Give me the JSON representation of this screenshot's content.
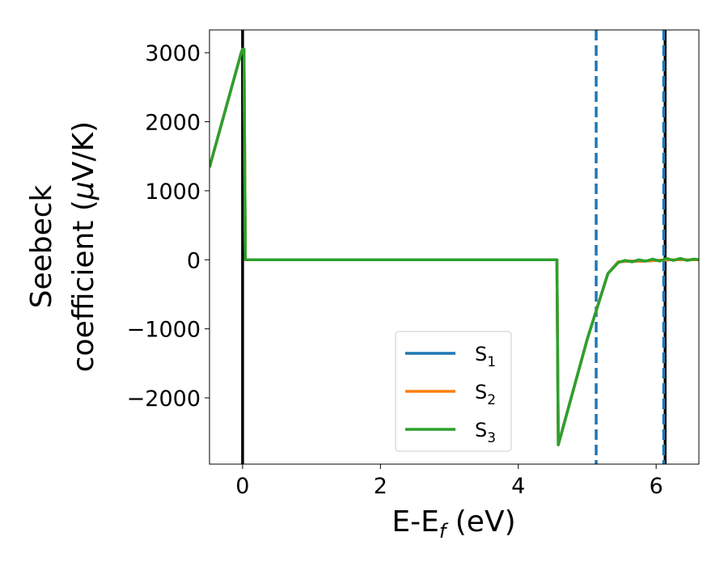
{
  "chart_data": {
    "type": "line",
    "xlabel": {
      "main": "E-E",
      "sub": "f",
      "unit": " (eV)"
    },
    "ylabel": {
      "line1": "Seebeck",
      "line2_pre": "coefficient  (",
      "mu": "μ",
      "line2_post": "V/K)"
    },
    "xlim": [
      -0.48,
      6.62
    ],
    "ylim": [
      -2960,
      3330
    ],
    "xticks": [
      0,
      2,
      4,
      6
    ],
    "yticks": [
      -2000,
      -1000,
      0,
      1000,
      2000,
      3000
    ],
    "ytick_labels": [
      "−2000",
      "−1000",
      "0",
      "1000",
      "2000",
      "3000"
    ],
    "series": [
      {
        "name": "S",
        "sub": "1",
        "color": "#1f77b4",
        "x": [
          -0.48,
          -0.02,
          0.0,
          0.02,
          0.04,
          4.56,
          4.58,
          5.0,
          5.3,
          5.45,
          5.6,
          5.8,
          6.0,
          6.2,
          6.4,
          6.62
        ],
        "y": [
          1340,
          3000,
          3050,
          3050,
          0,
          0,
          -2680,
          -1150,
          -200,
          -30,
          -20,
          -20,
          -10,
          0,
          0,
          0
        ]
      },
      {
        "name": "S",
        "sub": "2",
        "color": "#ff7f0e",
        "x": [
          -0.48,
          -0.02,
          0.0,
          0.02,
          0.04,
          4.56,
          4.58,
          5.0,
          5.3,
          5.45,
          5.6,
          5.8,
          6.0,
          6.2,
          6.4,
          6.62
        ],
        "y": [
          1340,
          3000,
          3050,
          3050,
          0,
          0,
          -2680,
          -1150,
          -200,
          -30,
          -20,
          -20,
          -10,
          0,
          0,
          0
        ]
      },
      {
        "name": "S",
        "sub": "3",
        "color": "#2ca02c",
        "x": [
          -0.48,
          -0.02,
          0.0,
          0.02,
          0.04,
          4.56,
          4.58,
          5.0,
          5.3,
          5.45,
          5.55,
          5.65,
          5.75,
          5.85,
          5.95,
          6.05,
          6.15,
          6.25,
          6.35,
          6.45,
          6.55,
          6.62
        ],
        "y": [
          1340,
          3000,
          3050,
          3050,
          0,
          0,
          -2680,
          -1150,
          -200,
          -40,
          -10,
          -30,
          0,
          -20,
          10,
          -20,
          20,
          -10,
          20,
          -10,
          10,
          0
        ]
      }
    ],
    "vlines": [
      {
        "x": 0.0,
        "style": "solid",
        "color": "#000000"
      },
      {
        "x": 6.13,
        "style": "solid",
        "color": "#000000"
      },
      {
        "x": 5.13,
        "style": "dashed",
        "color": "#1f77b4"
      },
      {
        "x": 6.11,
        "style": "dashed",
        "color": "#1f77b4"
      }
    ],
    "legend_placement": "lower-center",
    "grid": false
  }
}
